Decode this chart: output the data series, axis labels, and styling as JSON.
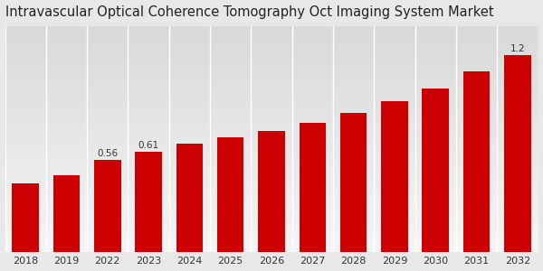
{
  "title": "Intravascular Optical Coherence Tomography Oct Imaging System Market",
  "categories": [
    "2018",
    "2019",
    "2022",
    "2023",
    "2024",
    "2025",
    "2026",
    "2027",
    "2028",
    "2029",
    "2030",
    "2031",
    "2032"
  ],
  "values": [
    0.42,
    0.47,
    0.56,
    0.61,
    0.66,
    0.7,
    0.74,
    0.79,
    0.85,
    0.92,
    1.0,
    1.1,
    1.2
  ],
  "bar_color": "#cc0000",
  "bg_top": "#d9d9d9",
  "bg_bottom": "#f5f5f5",
  "annotations": [
    {
      "index": 2,
      "label": "0.56"
    },
    {
      "index": 3,
      "label": "0.61"
    },
    {
      "index": 12,
      "label": "1.2"
    }
  ],
  "title_fontsize": 10.5,
  "ylabel_fontsize": 8.5,
  "tick_fontsize": 8,
  "annotation_fontsize": 7.5,
  "ylim": [
    0,
    1.38
  ],
  "bar_width": 0.65
}
